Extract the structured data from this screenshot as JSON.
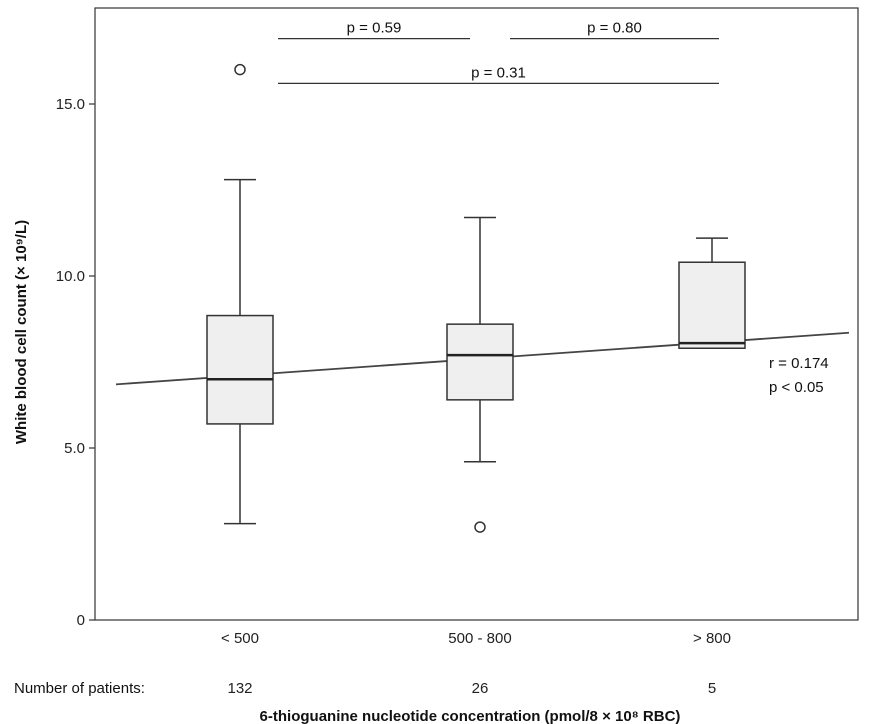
{
  "chart_data": {
    "type": "box",
    "ylabel": "White blood cell count (× 10⁹/L)",
    "xlabel": "6-thioguanine nucleotide concentration (pmol/8 × 10⁸ RBC)",
    "ylim": [
      0,
      17.5
    ],
    "yticks": [
      {
        "value": 0,
        "label": "0"
      },
      {
        "value": 5,
        "label": "5.0"
      },
      {
        "value": 10,
        "label": "10.0"
      },
      {
        "value": 15,
        "label": "15.0"
      }
    ],
    "categories": [
      "< 500",
      "500 - 800",
      "> 800"
    ],
    "patients_label": "Number of patients:",
    "patients": [
      "132",
      "26",
      "5"
    ],
    "boxes": [
      {
        "category": "< 500",
        "whisker_low": 2.8,
        "q1": 5.7,
        "median": 7.0,
        "q3": 8.85,
        "whisker_high": 12.8,
        "outliers": [
          16.0
        ]
      },
      {
        "category": "500 - 800",
        "whisker_low": 4.6,
        "q1": 6.4,
        "median": 7.7,
        "q3": 8.6,
        "whisker_high": 11.7,
        "outliers": [
          2.7
        ]
      },
      {
        "category": "> 800",
        "whisker_low": 7.9,
        "q1": 7.9,
        "median": 8.05,
        "q3": 10.4,
        "whisker_high": 11.1,
        "outliers": []
      }
    ],
    "regression": {
      "y_start": 6.85,
      "y_end": 8.35,
      "r_label": "r = 0.174",
      "p_label": "p < 0.05"
    },
    "comparisons": [
      {
        "from": "< 500",
        "to": "500 - 800",
        "label": "p = 0.59",
        "y": 16.9
      },
      {
        "from": "500 - 800",
        "to": "> 800",
        "label": "p = 0.80",
        "y": 16.9
      },
      {
        "from": "< 500",
        "to": "> 800",
        "label": "p = 0.31",
        "y": 15.6
      }
    ]
  }
}
